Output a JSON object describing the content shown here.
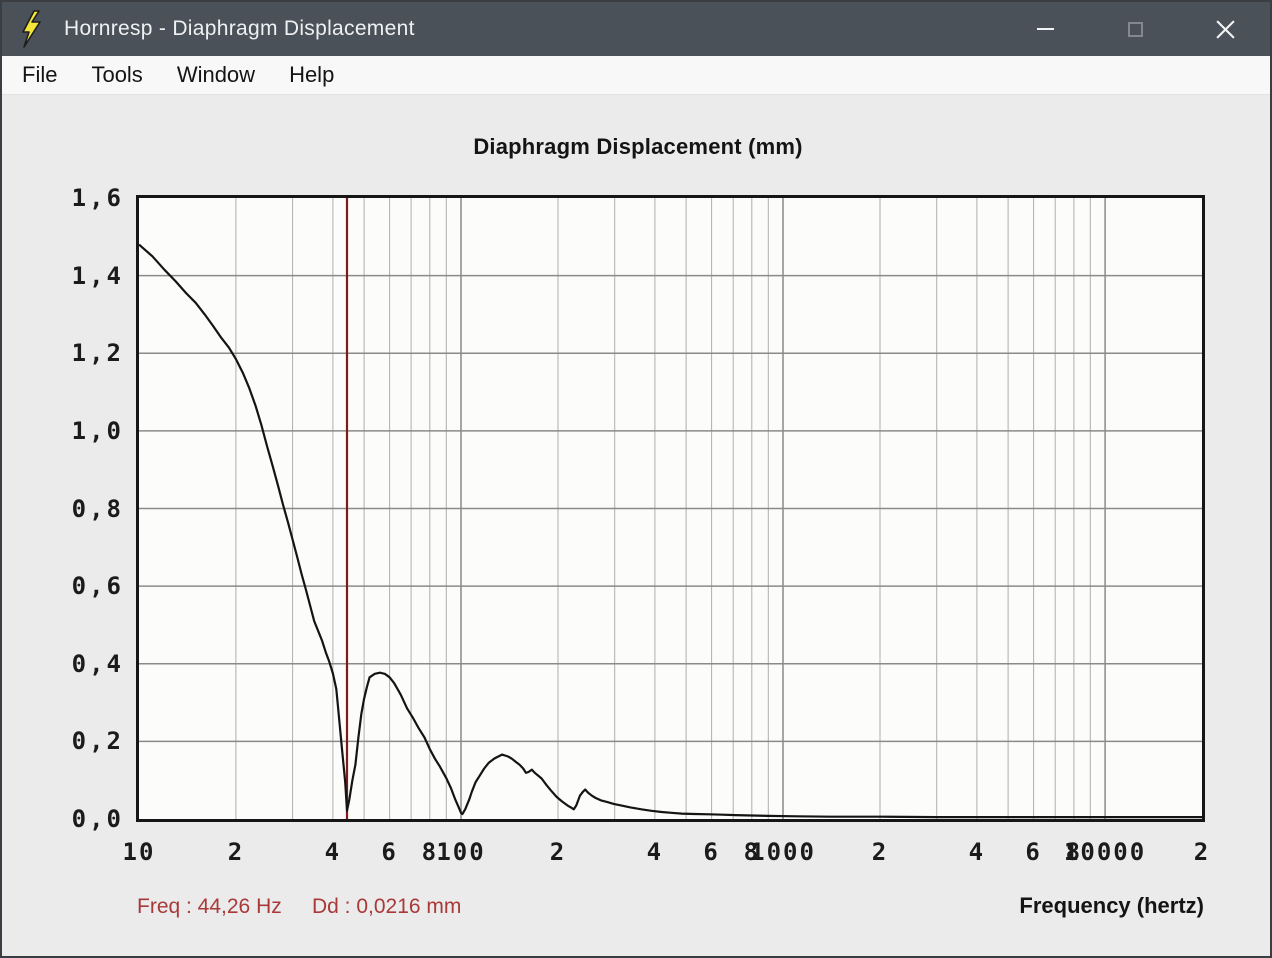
{
  "window": {
    "title": "Hornresp - Diaphragm Displacement",
    "icons": {
      "app": "lightning-bolt",
      "minimize": "dash",
      "maximize": "square",
      "close": "x-cross"
    }
  },
  "menu": {
    "items": [
      "File",
      "Tools",
      "Window",
      "Help"
    ]
  },
  "colors": {
    "titlebar": "#4b5158",
    "plot_bg": "#fcfcfb",
    "grid_minor": "#aeaeae",
    "grid_major": "#8a8a8a",
    "curve": "#141414",
    "cursor": "#7c1a1e",
    "readout_red": "#a93939"
  },
  "status": {
    "freq_text": "Freq : 44,26 Hz",
    "dd_text": "Dd : 0,0216 mm"
  },
  "chart_data": {
    "type": "line",
    "title": "Diaphragm Displacement (mm)",
    "xlabel": "Frequency (hertz)",
    "ylabel": "",
    "x_scale": "log",
    "x_range": [
      10,
      20000
    ],
    "y_range": [
      0,
      1.6
    ],
    "grid": {
      "y_step": 0.2,
      "x_minor_multiples": [
        2,
        3,
        4,
        5,
        6,
        7,
        8,
        9
      ]
    },
    "y_ticks": [
      {
        "value": 1.6,
        "label": "1,6"
      },
      {
        "value": 1.4,
        "label": "1,4"
      },
      {
        "value": 1.2,
        "label": "1,2"
      },
      {
        "value": 1.0,
        "label": "1,0"
      },
      {
        "value": 0.8,
        "label": "0,8"
      },
      {
        "value": 0.6,
        "label": "0,6"
      },
      {
        "value": 0.4,
        "label": "0,4"
      },
      {
        "value": 0.2,
        "label": "0,2"
      },
      {
        "value": 0.0,
        "label": "0,0"
      }
    ],
    "x_ticks": [
      {
        "value": 10,
        "label": "10"
      },
      {
        "value": 20,
        "label": "2"
      },
      {
        "value": 40,
        "label": "4"
      },
      {
        "value": 60,
        "label": "6"
      },
      {
        "value": 80,
        "label": "8"
      },
      {
        "value": 100,
        "label": "100"
      },
      {
        "value": 200,
        "label": "2"
      },
      {
        "value": 400,
        "label": "4"
      },
      {
        "value": 600,
        "label": "6"
      },
      {
        "value": 800,
        "label": "8"
      },
      {
        "value": 1000,
        "label": "1000"
      },
      {
        "value": 2000,
        "label": "2"
      },
      {
        "value": 4000,
        "label": "4"
      },
      {
        "value": 6000,
        "label": "6"
      },
      {
        "value": 8000,
        "label": "8"
      },
      {
        "value": 10000,
        "label": "10000"
      },
      {
        "value": 20000,
        "label": "2"
      }
    ],
    "cursor": {
      "freq_hz": 44.26,
      "dd_mm": 0.0216
    },
    "series": [
      {
        "name": "Diaphragm displacement",
        "points": [
          [
            10,
            1.48
          ],
          [
            11,
            1.45
          ],
          [
            12,
            1.415
          ],
          [
            13,
            1.385
          ],
          [
            14,
            1.355
          ],
          [
            15,
            1.33
          ],
          [
            16,
            1.3
          ],
          [
            17,
            1.27
          ],
          [
            18,
            1.24
          ],
          [
            19,
            1.215
          ],
          [
            20,
            1.185
          ],
          [
            21,
            1.15
          ],
          [
            22,
            1.11
          ],
          [
            23,
            1.065
          ],
          [
            24,
            1.015
          ],
          [
            25,
            0.96
          ],
          [
            26,
            0.91
          ],
          [
            27,
            0.86
          ],
          [
            28,
            0.81
          ],
          [
            29,
            0.765
          ],
          [
            30,
            0.72
          ],
          [
            31,
            0.675
          ],
          [
            32,
            0.63
          ],
          [
            33,
            0.59
          ],
          [
            34,
            0.55
          ],
          [
            35,
            0.51
          ],
          [
            36,
            0.485
          ],
          [
            37,
            0.46
          ],
          [
            38,
            0.43
          ],
          [
            39,
            0.405
          ],
          [
            40,
            0.375
          ],
          [
            41,
            0.335
          ],
          [
            41.7,
            0.27
          ],
          [
            42.7,
            0.18
          ],
          [
            43.7,
            0.095
          ],
          [
            44.26,
            0.0216
          ],
          [
            45,
            0.05
          ],
          [
            46,
            0.1
          ],
          [
            47,
            0.14
          ],
          [
            48,
            0.21
          ],
          [
            49,
            0.27
          ],
          [
            50,
            0.31
          ],
          [
            51,
            0.34
          ],
          [
            52,
            0.365
          ],
          [
            54,
            0.374
          ],
          [
            56,
            0.377
          ],
          [
            58,
            0.374
          ],
          [
            60,
            0.365
          ],
          [
            62,
            0.35
          ],
          [
            65,
            0.32
          ],
          [
            68,
            0.285
          ],
          [
            71,
            0.26
          ],
          [
            74,
            0.233
          ],
          [
            77,
            0.21
          ],
          [
            80,
            0.18
          ],
          [
            83,
            0.155
          ],
          [
            86,
            0.135
          ],
          [
            90,
            0.105
          ],
          [
            93,
            0.08
          ],
          [
            96,
            0.05
          ],
          [
            98,
            0.033
          ],
          [
            100,
            0.016
          ],
          [
            101,
            0.013
          ],
          [
            103,
            0.025
          ],
          [
            106,
            0.05
          ],
          [
            108,
            0.07
          ],
          [
            111,
            0.095
          ],
          [
            114,
            0.11
          ],
          [
            118,
            0.13
          ],
          [
            122,
            0.145
          ],
          [
            127,
            0.156
          ],
          [
            134,
            0.166
          ],
          [
            140,
            0.161
          ],
          [
            144,
            0.155
          ],
          [
            148,
            0.147
          ],
          [
            152,
            0.14
          ],
          [
            156,
            0.13
          ],
          [
            159,
            0.119
          ],
          [
            162,
            0.121
          ],
          [
            166,
            0.127
          ],
          [
            170,
            0.118
          ],
          [
            174,
            0.111
          ],
          [
            178,
            0.104
          ],
          [
            184,
            0.088
          ],
          [
            190,
            0.074
          ],
          [
            198,
            0.057
          ],
          [
            206,
            0.045
          ],
          [
            214,
            0.035
          ],
          [
            220,
            0.029
          ],
          [
            224,
            0.025
          ],
          [
            228,
            0.035
          ],
          [
            234,
            0.06
          ],
          [
            239,
            0.07
          ],
          [
            243,
            0.076
          ],
          [
            248,
            0.068
          ],
          [
            255,
            0.06
          ],
          [
            262,
            0.054
          ],
          [
            272,
            0.048
          ],
          [
            284,
            0.044
          ],
          [
            298,
            0.039
          ],
          [
            314,
            0.035
          ],
          [
            336,
            0.03
          ],
          [
            363,
            0.025
          ],
          [
            390,
            0.021
          ],
          [
            420,
            0.018
          ],
          [
            450,
            0.016
          ],
          [
            484,
            0.014
          ],
          [
            530,
            0.013
          ],
          [
            590,
            0.012
          ],
          [
            650,
            0.011
          ],
          [
            710,
            0.01
          ],
          [
            800,
            0.009
          ],
          [
            900,
            0.008
          ],
          [
            1100,
            0.007
          ],
          [
            1400,
            0.006
          ],
          [
            2000,
            0.006
          ],
          [
            3000,
            0.005
          ],
          [
            5000,
            0.005
          ],
          [
            10000,
            0.005
          ],
          [
            20000,
            0.005
          ]
        ]
      }
    ]
  }
}
